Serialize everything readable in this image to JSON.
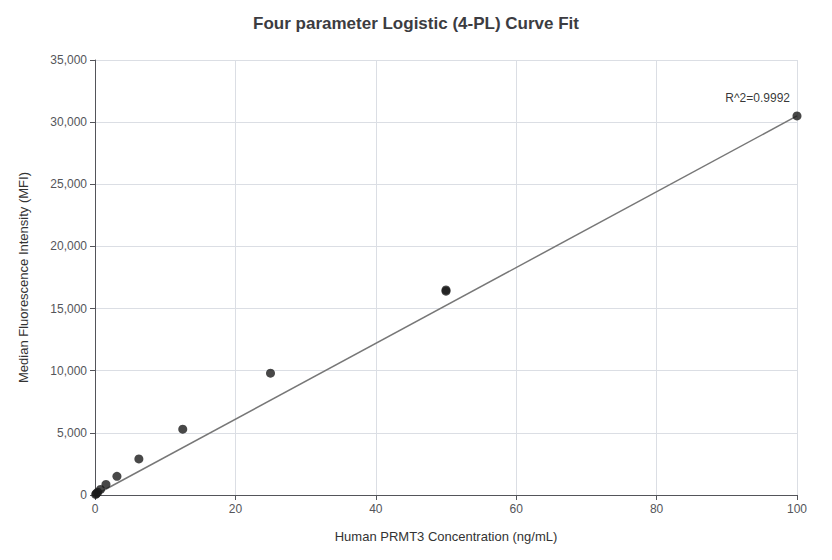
{
  "chart_data": {
    "type": "scatter",
    "title": "Four parameter Logistic (4-PL) Curve Fit",
    "xlabel": "Human PRMT3 Concentration (ng/mL)",
    "ylabel": "Median Fluorescence Intensity (MFI)",
    "series": [
      {
        "type": "scatter",
        "color": "#1a1a1a",
        "x": [
          0.098,
          0.195,
          0.39,
          0.781,
          1.563,
          3.125,
          6.25,
          12.5,
          25.0,
          50.0,
          50.0,
          100.0
        ],
        "values": [
          50,
          120,
          220,
          450,
          850,
          1500,
          2900,
          5300,
          9800,
          16400,
          16500,
          30500
        ]
      },
      {
        "type": "line",
        "color": "#777777",
        "x": [
          0.0,
          100.0
        ],
        "values": [
          0.0,
          30500.0
        ]
      }
    ],
    "xlim": [
      0,
      100
    ],
    "ylim": [
      0,
      35000
    ],
    "xticks": [
      0,
      20,
      40,
      60,
      80,
      100
    ],
    "yticks": [
      0,
      {
        "value": 5000,
        "label": "5,000"
      },
      {
        "value": 10000,
        "label": "10,000"
      },
      {
        "value": 15000,
        "label": "15,000"
      },
      {
        "value": 20000,
        "label": "20,000"
      },
      {
        "value": 25000,
        "label": "25,000"
      },
      {
        "value": 30000,
        "label": "30,000"
      },
      {
        "value": 35000,
        "label": "35,000"
      }
    ],
    "annotations": [
      {
        "text": "R^2=0.9992",
        "x": 99,
        "y": 31500
      }
    ],
    "grid": true
  }
}
